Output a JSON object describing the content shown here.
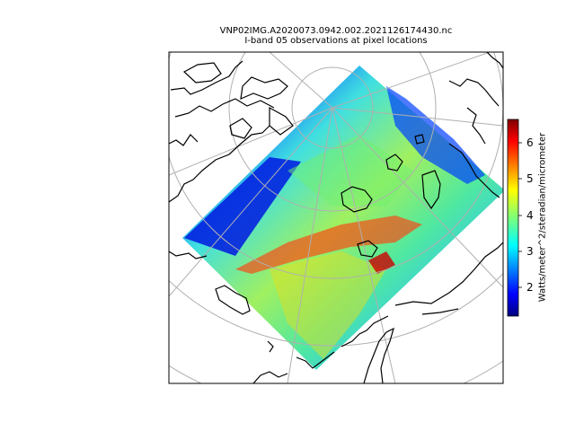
{
  "title": {
    "line1": "VNP02IMG.A2020073.0942.002.2021126174430.nc",
    "line2": "I-band 05 observations at pixel locations"
  },
  "colorbar": {
    "label": "Watts/meter^2/steradian/micrometer",
    "ticks": [
      "2",
      "3",
      "4",
      "5",
      "6"
    ],
    "colormap": "jet",
    "range": [
      1.4,
      6.7
    ]
  },
  "colors": {
    "coastline": "#000000",
    "graticule": "#b0b0b0",
    "frame": "#000000"
  },
  "map": {
    "projection": "north-polar-stereographic",
    "graticule": true,
    "swath_shape": "rotated-square"
  }
}
